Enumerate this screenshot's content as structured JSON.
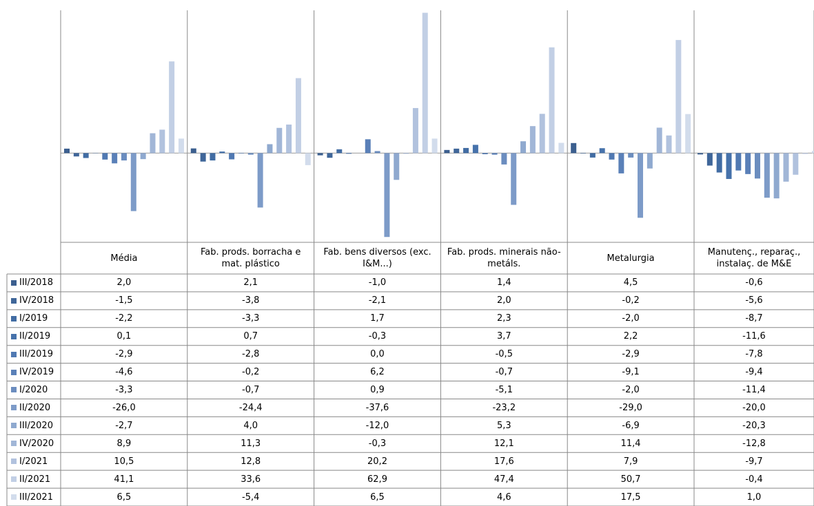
{
  "chart_data": {
    "type": "bar",
    "categories": [
      "Média",
      "Fab. prods. borracha e mat. plástico",
      "Fab. bens diversos (exc. I&M...)",
      "Fab. prods. minerais não-metáls.",
      "Metalurgia",
      "Manutenç., reparaç., instalaç. de M&E"
    ],
    "ylim": [
      -40,
      64
    ],
    "series": [
      {
        "name": "III/2018",
        "color": "#3b5f8f",
        "values": [
          2.0,
          2.1,
          -1.0,
          1.4,
          4.5,
          -0.6
        ],
        "value_labels": [
          "2,0",
          "2,1",
          "-1,0",
          "1,4",
          "4,5",
          "-0,6"
        ]
      },
      {
        "name": "IV/2018",
        "color": "#3f6699",
        "values": [
          -1.5,
          -3.8,
          -2.1,
          2.0,
          -0.2,
          -5.6
        ],
        "value_labels": [
          "-1,5",
          "-3,8",
          "-2,1",
          "2,0",
          "-0,2",
          "-5,6"
        ]
      },
      {
        "name": "I/2019",
        "color": "#416ca3",
        "values": [
          -2.2,
          -3.3,
          1.7,
          2.3,
          -2.0,
          -8.7
        ],
        "value_labels": [
          "-2,2",
          "-3,3",
          "1,7",
          "2,3",
          "-2,0",
          "-8,7"
        ]
      },
      {
        "name": "II/2019",
        "color": "#4672ab",
        "values": [
          0.1,
          0.7,
          -0.3,
          3.7,
          2.2,
          -11.6
        ],
        "value_labels": [
          "0,1",
          "0,7",
          "-0,3",
          "3,7",
          "2,2",
          "-11,6"
        ]
      },
      {
        "name": "III/2019",
        "color": "#5079b2",
        "values": [
          -2.9,
          -2.8,
          0.0,
          -0.5,
          -2.9,
          -7.8
        ],
        "value_labels": [
          "-2,9",
          "-2,8",
          "0,0",
          "-0,5",
          "-2,9",
          "-7,8"
        ]
      },
      {
        "name": "IV/2019",
        "color": "#5a80b8",
        "values": [
          -4.6,
          -0.2,
          6.2,
          -0.7,
          -9.1,
          -9.4
        ],
        "value_labels": [
          "-4,6",
          "-0,2",
          "6,2",
          "-0,7",
          "-9,1",
          "-9,4"
        ]
      },
      {
        "name": "I/2020",
        "color": "#6b8dbf",
        "values": [
          -3.3,
          -0.7,
          0.9,
          -5.1,
          -2.0,
          -11.4
        ],
        "value_labels": [
          "-3,3",
          "-0,7",
          "0,9",
          "-5,1",
          "-2,0",
          "-11,4"
        ]
      },
      {
        "name": "II/2020",
        "color": "#7d9bc8",
        "values": [
          -26.0,
          -24.4,
          -37.6,
          -23.2,
          -29.0,
          -20.0
        ],
        "value_labels": [
          "-26,0",
          "-24,4",
          "-37,6",
          "-23,2",
          "-29,0",
          "-20,0"
        ]
      },
      {
        "name": "III/2020",
        "color": "#8fa9cf",
        "values": [
          -2.7,
          4.0,
          -12.0,
          5.3,
          -6.9,
          -20.3
        ],
        "value_labels": [
          "-2,7",
          "4,0",
          "-12,0",
          "5,3",
          "-6,9",
          "-20,3"
        ]
      },
      {
        "name": "IV/2020",
        "color": "#a1b6d7",
        "values": [
          8.9,
          11.3,
          -0.3,
          12.1,
          11.4,
          -12.8
        ],
        "value_labels": [
          "8,9",
          "11,3",
          "-0,3",
          "12,1",
          "11,4",
          "-12,8"
        ]
      },
      {
        "name": "I/2021",
        "color": "#b1c2de",
        "values": [
          10.5,
          12.8,
          20.2,
          17.6,
          7.9,
          -9.7
        ],
        "value_labels": [
          "10,5",
          "12,8",
          "20,2",
          "17,6",
          "7,9",
          "-9,7"
        ]
      },
      {
        "name": "II/2021",
        "color": "#c2cfe5",
        "values": [
          41.1,
          33.6,
          62.9,
          47.4,
          50.7,
          -0.4
        ],
        "value_labels": [
          "41,1",
          "33,6",
          "62,9",
          "47,4",
          "50,7",
          "-0,4"
        ]
      },
      {
        "name": "III/2021",
        "color": "#d2dcec",
        "values": [
          6.5,
          -5.4,
          6.5,
          4.6,
          17.5,
          1.0
        ],
        "value_labels": [
          "6,5",
          "-5,4",
          "6,5",
          "4,6",
          "17,5",
          "1,0"
        ]
      }
    ]
  }
}
